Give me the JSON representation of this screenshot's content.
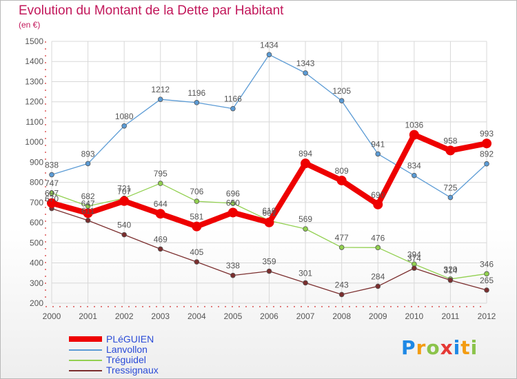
{
  "header": {
    "title": "Evolution du Montant de la Dette par Habitant",
    "subtitle": "(en €)"
  },
  "logo": {
    "letters": [
      "P",
      "r",
      "o",
      "x",
      "i",
      "t",
      "i"
    ],
    "colors": [
      "#1e88e5",
      "#f39c12",
      "#8bc34a",
      "#e53935",
      "#1e88e5",
      "#f39c12",
      "#8bc34a"
    ]
  },
  "chart_data": {
    "type": "line",
    "title": "Evolution du Montant de la Dette par Habitant",
    "subtitle": "(en €)",
    "xlabel": "",
    "ylabel": "",
    "ylim": [
      200,
      1500
    ],
    "yticks": [
      200,
      300,
      400,
      500,
      600,
      700,
      800,
      900,
      1000,
      1100,
      1200,
      1300,
      1400,
      1500
    ],
    "x": [
      "2000",
      "2001",
      "2002",
      "2003",
      "2004",
      "2005",
      "2006",
      "2007",
      "2008",
      "2009",
      "2010",
      "2011",
      "2012"
    ],
    "grid": true,
    "legend_position": "bottom-left",
    "series": [
      {
        "name": "PLéGUIEN",
        "color": "#ee0000",
        "values": [
          697,
          647,
          707,
          644,
          581,
          650,
          601,
          894,
          809,
          690,
          1036,
          958,
          993
        ]
      },
      {
        "name": "Lanvollon",
        "color": "#5b9bd5",
        "values": [
          838,
          893,
          1080,
          1212,
          1196,
          1166,
          1434,
          1343,
          1205,
          941,
          834,
          725,
          892
        ]
      },
      {
        "name": "Tréguidel",
        "color": "#92d050",
        "values": [
          747,
          682,
          721,
          795,
          706,
          696,
          610,
          569,
          477,
          476,
          394,
          320,
          346
        ]
      },
      {
        "name": "Tressignaux",
        "color": "#7b2e2e",
        "values": [
          670,
          611,
          540,
          469,
          405,
          338,
          359,
          301,
          243,
          284,
          374,
          314,
          265
        ]
      }
    ]
  }
}
